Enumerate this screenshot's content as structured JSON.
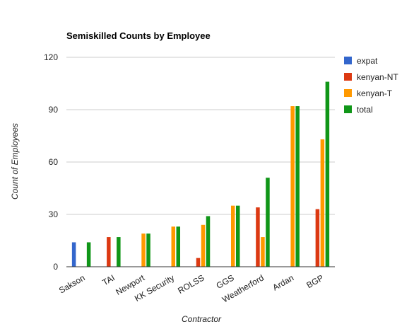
{
  "chart_data": {
    "type": "bar",
    "title": "Semiskilled Counts by Employee",
    "xlabel": "Contractor",
    "ylabel": "Count of Employees",
    "categories": [
      "Sakson",
      "TAI",
      "Newport",
      "KK Security",
      "ROLSS",
      "GGS",
      "Weatherford",
      "Ardan",
      "BGP"
    ],
    "ylim": [
      0,
      120
    ],
    "yticks": [
      0,
      30,
      60,
      90,
      120
    ],
    "grid": true,
    "legend_position": "right",
    "series": [
      {
        "name": "expat",
        "color": "#3366cc",
        "values": [
          14,
          0,
          0,
          0,
          0,
          0,
          0,
          0,
          0
        ]
      },
      {
        "name": "kenyan-NT",
        "color": "#dc3912",
        "values": [
          0,
          17,
          0,
          0,
          5,
          0,
          34,
          0,
          33
        ]
      },
      {
        "name": "kenyan-T",
        "color": "#ff9900",
        "values": [
          0,
          0,
          19,
          23,
          24,
          35,
          17,
          92,
          73
        ]
      },
      {
        "name": "total",
        "color": "#109618",
        "values": [
          14,
          17,
          19,
          23,
          29,
          35,
          51,
          92,
          106
        ]
      }
    ]
  }
}
